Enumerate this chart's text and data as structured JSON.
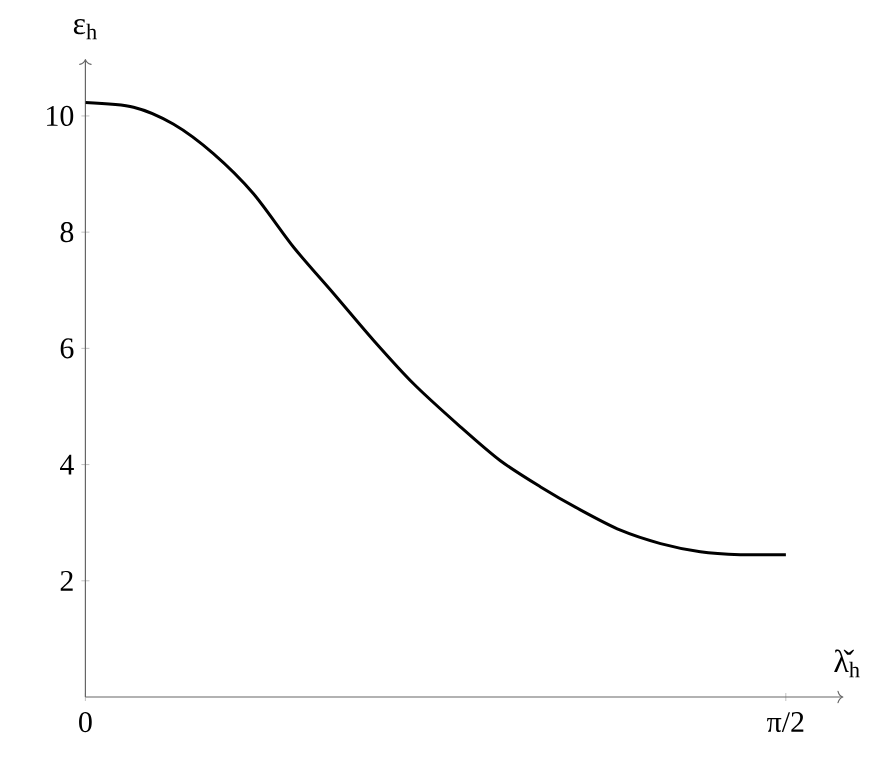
{
  "chart_data": {
    "type": "line",
    "xlabel": "λ̌$_{h}$",
    "ylabel": "ε$_{h}$",
    "x": [
      0,
      0.108,
      0.197,
      0.287,
      0.377,
      0.467,
      0.557,
      0.646,
      0.736,
      0.841,
      0.93,
      1.02,
      1.11,
      1.2,
      1.29,
      1.379,
      1.469,
      1.571
    ],
    "series": [
      {
        "color": "#000000",
        "values": [
          10.23,
          10.15,
          9.86,
          9.35,
          8.66,
          7.74,
          6.94,
          6.14,
          5.39,
          4.65,
          4.07,
          3.62,
          3.22,
          2.87,
          2.64,
          2.5,
          2.45,
          2.45
        ]
      }
    ],
    "xlim": [
      0,
      1.7
    ],
    "ylim": [
      0,
      10.98
    ],
    "xticks": [
      0,
      {
        "value": 1.5708,
        "label": "π/2"
      }
    ],
    "yticks": [
      2,
      4,
      6,
      8,
      10
    ]
  }
}
